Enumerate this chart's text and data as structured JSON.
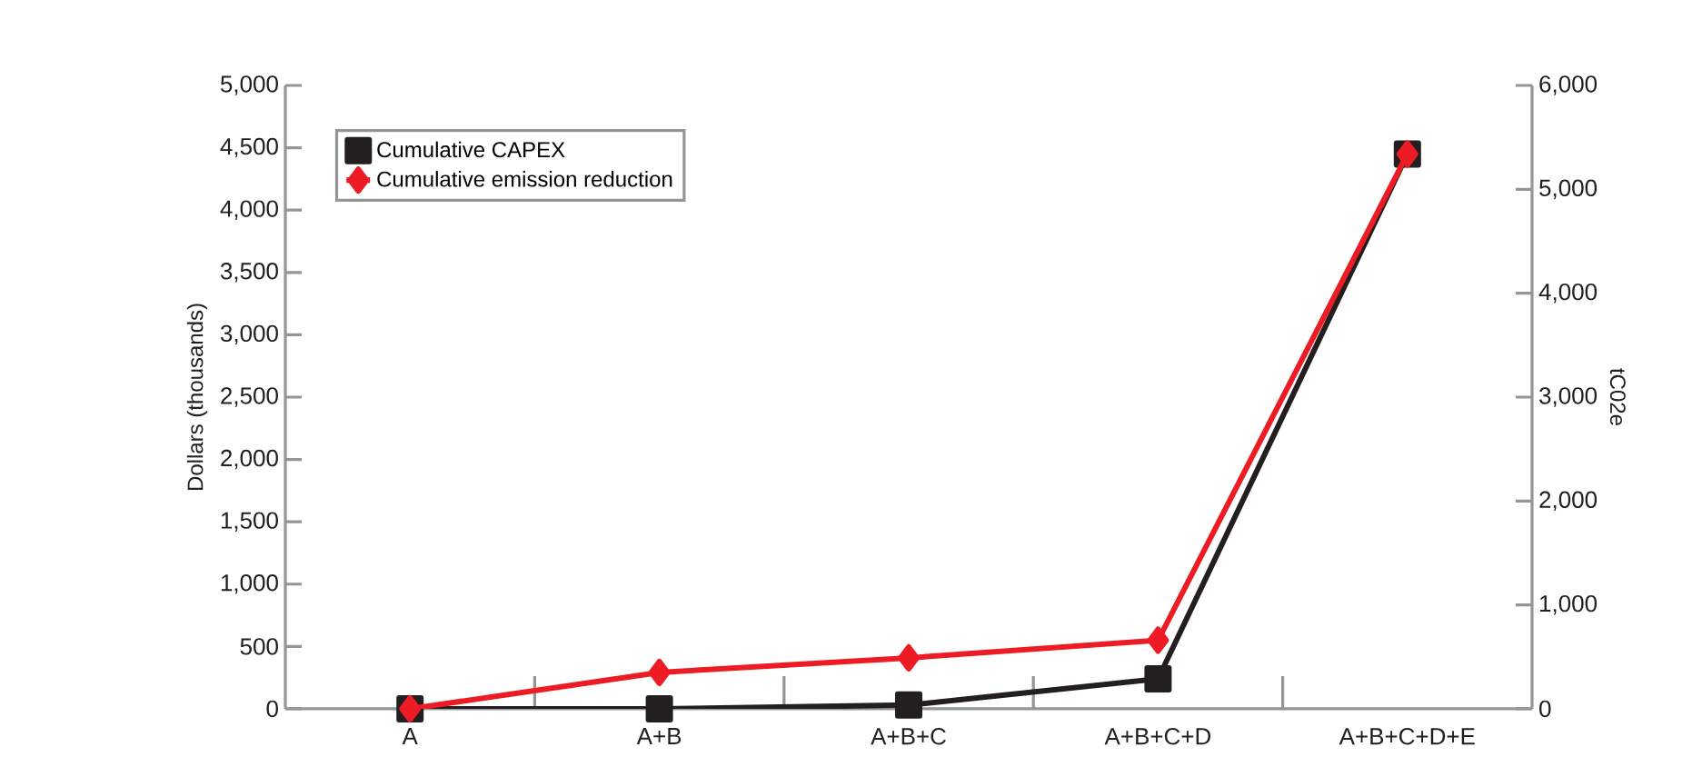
{
  "chart_data": {
    "type": "line",
    "ylabel": "Dollars (thousands)",
    "y2label": "tC02e",
    "categories": [
      "A",
      "A+B",
      "A+B+C",
      "A+B+C+D",
      "A+B+C+D+E"
    ],
    "series": [
      {
        "name": "Cumulative CAPEX",
        "color": "#231f20",
        "marker": "square",
        "axis": "y",
        "values": [
          0,
          0,
          30,
          240,
          4450
        ]
      },
      {
        "name": "Cumulative emission reduction",
        "color": "#ed1c24",
        "marker": "diamond",
        "axis": "y2",
        "values": [
          0,
          350,
          490,
          660,
          5340
        ]
      }
    ],
    "ylim": [
      0,
      5000
    ],
    "yticks": [
      0,
      500,
      {
        "value": 1000,
        "label": "1,000"
      },
      {
        "value": 1500,
        "label": "1,500"
      },
      {
        "value": 2000,
        "label": "2,000"
      },
      {
        "value": 2500,
        "label": "2,500"
      },
      {
        "value": 3000,
        "label": "3,000"
      },
      {
        "value": 3500,
        "label": "3,500"
      },
      {
        "value": 4000,
        "label": "4,000"
      },
      {
        "value": 4500,
        "label": "4,500"
      },
      {
        "value": 5000,
        "label": "5,000"
      }
    ],
    "y2lim": [
      0,
      6000
    ],
    "y2ticks": [
      0,
      {
        "value": 1000,
        "label": "1,000"
      },
      {
        "value": 2000,
        "label": "2,000"
      },
      {
        "value": 3000,
        "label": "3,000"
      },
      {
        "value": 4000,
        "label": "4,000"
      },
      {
        "value": 5000,
        "label": "5,000"
      },
      {
        "value": 6000,
        "label": "6,000"
      }
    ],
    "grid": false,
    "legend": "top left",
    "line_style": "solid"
  }
}
